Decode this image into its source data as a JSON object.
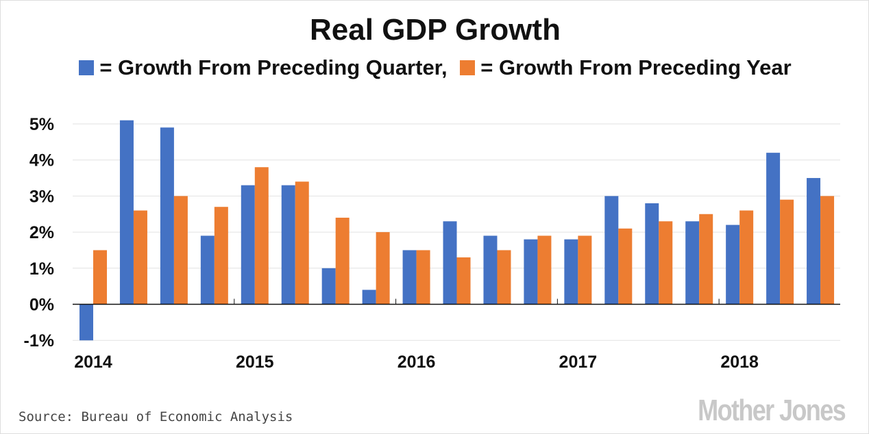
{
  "chart_data": {
    "type": "bar",
    "title": "Real GDP Growth",
    "xlabel": "",
    "ylabel": "",
    "ylim": [
      -1,
      5.5
    ],
    "yticks": [
      "-1%",
      "0%",
      "1%",
      "2%",
      "3%",
      "4%",
      "5%"
    ],
    "ytick_values": [
      -1,
      0,
      1,
      2,
      3,
      4,
      5
    ],
    "xtick_labels": [
      "2014",
      "2015",
      "2016",
      "2017",
      "2018"
    ],
    "categories": [
      "2014Q1",
      "2014Q2",
      "2014Q3",
      "2014Q4",
      "2015Q1",
      "2015Q2",
      "2015Q3",
      "2015Q4",
      "2016Q1",
      "2016Q2",
      "2016Q3",
      "2016Q4",
      "2017Q1",
      "2017Q2",
      "2017Q3",
      "2017Q4",
      "2018Q1",
      "2018Q2",
      "2018Q3"
    ],
    "series": [
      {
        "name": "= Growth From Preceding Quarter,",
        "color": "#4472c4",
        "values": [
          -1.0,
          5.1,
          4.9,
          1.9,
          3.3,
          3.3,
          1.0,
          0.4,
          1.5,
          2.3,
          1.9,
          1.8,
          1.8,
          3.0,
          2.8,
          2.3,
          2.2,
          4.2,
          3.5
        ]
      },
      {
        "name": "= Growth From Preceding Year",
        "color": "#ed7d31",
        "values": [
          1.5,
          2.6,
          3.0,
          2.7,
          3.8,
          3.4,
          2.4,
          2.0,
          1.5,
          1.3,
          1.5,
          1.9,
          1.9,
          2.1,
          2.3,
          2.5,
          2.6,
          2.9,
          3.0
        ]
      }
    ],
    "legend_position": "top",
    "grid": true
  },
  "footer": {
    "source": "Source: Bureau of Economic Analysis",
    "logo": "Mother Jones"
  }
}
